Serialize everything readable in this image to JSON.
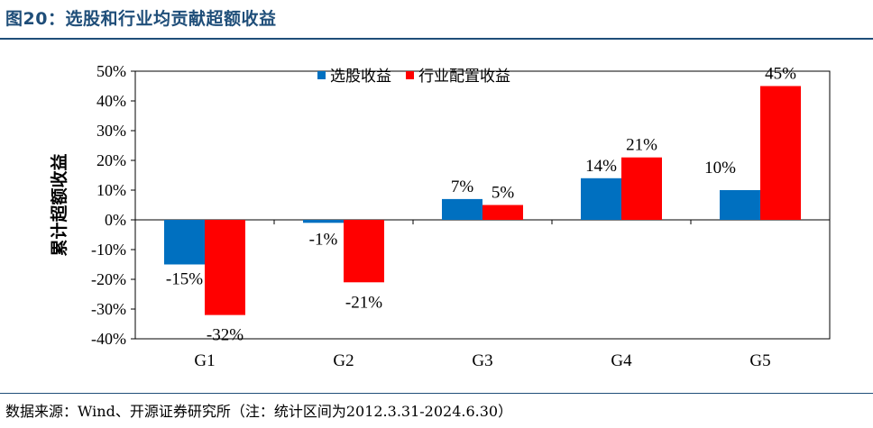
{
  "title": "图20：选股和行业均贡献超额收益",
  "source": "数据来源：Wind、开源证券研究所（注：统计区间为2012.3.31-2024.6.30）",
  "colors": {
    "title": "#1F4E79",
    "series1": "#0070C0",
    "series2": "#FF0000"
  },
  "chart_data": {
    "type": "bar",
    "categories": [
      "G1",
      "G2",
      "G3",
      "G4",
      "G5"
    ],
    "series": [
      {
        "name": "选股收益",
        "values": [
          -15,
          -1,
          7,
          14,
          10
        ],
        "labels": [
          "-15%",
          "-1%",
          "7%",
          "14%",
          "10%"
        ]
      },
      {
        "name": "行业配置收益",
        "values": [
          -32,
          -21,
          5,
          21,
          45
        ],
        "labels": [
          "-32%",
          "-21%",
          "5%",
          "21%",
          "45%"
        ]
      }
    ],
    "ylabel": "累计超额收益",
    "xlabel": "",
    "ylim": [
      -40,
      50
    ],
    "yticks": [
      50,
      40,
      30,
      20,
      10,
      0,
      -10,
      -20,
      -30,
      -40
    ],
    "ytick_labels": [
      "50%",
      "40%",
      "30%",
      "20%",
      "10%",
      "0%",
      "-10%",
      "-20%",
      "-30%",
      "-40%"
    ],
    "grid": false,
    "legend_position": "top"
  }
}
